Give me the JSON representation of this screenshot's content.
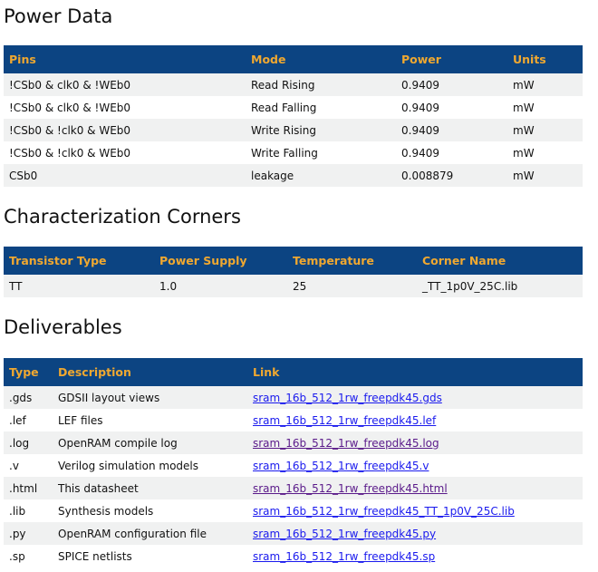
{
  "power": {
    "title": "Power Data",
    "headers": [
      "Pins",
      "Mode",
      "Power",
      "Units"
    ],
    "rows": [
      [
        "!CSb0 & clk0 & !WEb0",
        "Read Rising",
        "0.9409",
        "mW"
      ],
      [
        "!CSb0 & clk0 & !WEb0",
        "Read Falling",
        "0.9409",
        "mW"
      ],
      [
        "!CSb0 & !clk0 & WEb0",
        "Write Rising",
        "0.9409",
        "mW"
      ],
      [
        "!CSb0 & !clk0 & WEb0",
        "Write Falling",
        "0.9409",
        "mW"
      ],
      [
        "CSb0",
        "leakage",
        "0.008879",
        "mW"
      ]
    ]
  },
  "corners": {
    "title": "Characterization Corners",
    "headers": [
      "Transistor Type",
      "Power Supply",
      "Temperature",
      "Corner Name"
    ],
    "rows": [
      [
        "TT",
        "1.0",
        "25",
        "_TT_1p0V_25C.lib"
      ]
    ]
  },
  "deliverables": {
    "title": "Deliverables",
    "headers": [
      "Type",
      "Description",
      "Link"
    ],
    "rows": [
      [
        ".gds",
        "GDSII layout views",
        "sram_16b_512_1rw_freepdk45.gds"
      ],
      [
        ".lef",
        "LEF files",
        "sram_16b_512_1rw_freepdk45.lef"
      ],
      [
        ".log",
        "OpenRAM compile log",
        "sram_16b_512_1rw_freepdk45.log"
      ],
      [
        ".v",
        "Verilog simulation models",
        "sram_16b_512_1rw_freepdk45.v"
      ],
      [
        ".html",
        "This datasheet",
        "sram_16b_512_1rw_freepdk45.html"
      ],
      [
        ".lib",
        "Synthesis models",
        "sram_16b_512_1rw_freepdk45_TT_1p0V_25C.lib"
      ],
      [
        ".py",
        "OpenRAM configuration file",
        "sram_16b_512_1rw_freepdk45.py"
      ],
      [
        ".sp",
        "SPICE netlists",
        "sram_16b_512_1rw_freepdk45.sp"
      ]
    ],
    "visited": [
      ".log",
      ".html"
    ]
  },
  "colors": {
    "header_bg": "#0c4482",
    "header_text": "#f0a830",
    "link": "#1a1aee",
    "visited_link": "#5a1a8a",
    "stripe": "#f0f1f1"
  }
}
